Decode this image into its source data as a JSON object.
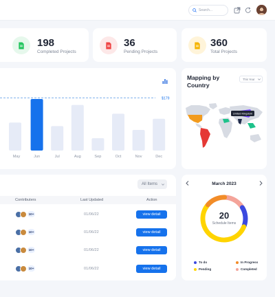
{
  "header": {
    "search_placeholder": "Search..."
  },
  "stats": [
    {
      "value": "198",
      "label": "Completed Projects",
      "color": "#22c55e",
      "bg": "#e6f8ec",
      "icon": "document-icon"
    },
    {
      "value": "36",
      "label": "Pending Projects",
      "color": "#ef4444",
      "bg": "#fde8e8",
      "icon": "document-icon"
    },
    {
      "value": "360",
      "label": "Total Projects",
      "color": "#f5b400",
      "bg": "#fff4d9",
      "icon": "document-icon"
    }
  ],
  "chart_data": {
    "type": "bar",
    "categories": [
      "May",
      "Jun",
      "Jul",
      "Aug",
      "Sep",
      "Oct",
      "Nov",
      "Dec"
    ],
    "values": [
      95,
      175,
      83,
      155,
      42,
      125,
      70,
      108
    ],
    "highlight_index": 1,
    "reference_line": 179,
    "reference_label": "$179",
    "ylim": [
      0,
      210
    ],
    "colors": {
      "bar": "#e6ebf7",
      "highlight": "#1672ec",
      "reference": "#6aa4e8"
    }
  },
  "map": {
    "title": "Mapping by Country",
    "filter": "This Year",
    "tooltip": "United Kingdom"
  },
  "table": {
    "filter_label": "All Items",
    "columns": [
      "Contributers",
      "Last Updated",
      "Action"
    ],
    "rows": [
      {
        "badge": "10+",
        "date": "01/06/22",
        "action": "view detail"
      },
      {
        "badge": "10+",
        "date": "01/06/22",
        "action": "view detail"
      },
      {
        "badge": "10+",
        "date": "01/06/22",
        "action": "view detail"
      },
      {
        "badge": "10+",
        "date": "01/06/22",
        "action": "view detail"
      }
    ]
  },
  "calendar": {
    "month": "March 2023",
    "count": "20",
    "count_label": "Schedule Items",
    "segments": [
      {
        "name": "To do",
        "value": 3,
        "color": "#3b49df"
      },
      {
        "name": "In Progress",
        "value": 3,
        "color": "#f28c28"
      },
      {
        "name": "Pending",
        "value": 11,
        "color": "#ffd400"
      },
      {
        "name": "Completed",
        "value": 3,
        "color": "#f4a49a"
      }
    ]
  }
}
